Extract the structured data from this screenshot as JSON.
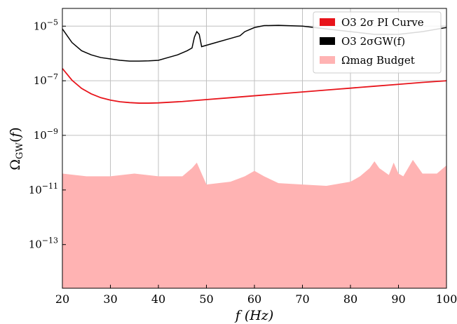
{
  "chart_data": {
    "type": "line",
    "xlabel": "f (Hz)",
    "ylabel": "Ω_GW(f)",
    "xlim": [
      20,
      100
    ],
    "ylim_log10": [
      -14.6,
      -4.35
    ],
    "y_scale": "log",
    "grid": true,
    "legend_position": "top-right",
    "x_ticks": [
      20,
      30,
      40,
      50,
      60,
      70,
      80,
      90,
      100
    ],
    "x_tick_labels": [
      "20",
      "30",
      "40",
      "50",
      "60",
      "70",
      "80",
      "90",
      "100"
    ],
    "y_ticks_log10": [
      -13,
      -11,
      -9,
      -7,
      -5
    ],
    "y_tick_labels": [
      "10−13",
      "10−11",
      "10−9",
      "10−7",
      "10−5"
    ],
    "legend": {
      "pi_curve": "O3 2σ PI Curve",
      "sigma": "O3 2σGW(f)",
      "budget": "Ωmag Budget"
    },
    "colors": {
      "pi_curve": "#e8141b",
      "sigma": "#000000",
      "budget": "#ffb3b3",
      "grid": "#c0c0c0"
    },
    "series": [
      {
        "name": "O3 2σ PI Curve",
        "x": [
          20,
          22,
          24,
          26,
          28,
          30,
          32,
          34,
          36,
          38,
          40,
          45,
          50,
          55,
          60,
          65,
          70,
          75,
          80,
          85,
          90,
          95,
          100
        ],
        "log10_y": [
          -6.55,
          -6.98,
          -7.28,
          -7.48,
          -7.62,
          -7.71,
          -7.77,
          -7.8,
          -7.82,
          -7.82,
          -7.81,
          -7.76,
          -7.69,
          -7.62,
          -7.55,
          -7.48,
          -7.41,
          -7.34,
          -7.27,
          -7.2,
          -7.13,
          -7.06,
          -7.0
        ]
      },
      {
        "name": "O3 2σGW(f)",
        "x": [
          20,
          22,
          24,
          26,
          28,
          30,
          32,
          34,
          36,
          38,
          40,
          42,
          44,
          46,
          47,
          47.5,
          48,
          48.5,
          49,
          52,
          55,
          57,
          58,
          60,
          62,
          65,
          70,
          75,
          80,
          85,
          90,
          95,
          100
        ],
        "log10_y": [
          -5.1,
          -5.6,
          -5.9,
          -6.05,
          -6.15,
          -6.2,
          -6.25,
          -6.28,
          -6.28,
          -6.27,
          -6.25,
          -6.15,
          -6.05,
          -5.9,
          -5.8,
          -5.4,
          -5.2,
          -5.3,
          -5.75,
          -5.6,
          -5.45,
          -5.35,
          -5.2,
          -5.05,
          -4.98,
          -4.97,
          -5.0,
          -5.1,
          -5.2,
          -5.3,
          -5.3,
          -5.2,
          -5.05
        ]
      },
      {
        "name": "Ωmag Budget",
        "x": [
          20,
          25,
          30,
          35,
          40,
          45,
          47,
          48,
          49,
          50,
          55,
          58,
          60,
          62,
          65,
          70,
          75,
          80,
          82,
          84,
          85,
          86,
          88,
          89,
          90,
          91,
          92,
          93,
          95,
          98,
          100
        ],
        "log10_y": [
          -10.4,
          -10.5,
          -10.5,
          -10.4,
          -10.5,
          -10.5,
          -10.2,
          -10.0,
          -10.4,
          -10.8,
          -10.7,
          -10.5,
          -10.3,
          -10.5,
          -10.75,
          -10.8,
          -10.85,
          -10.7,
          -10.5,
          -10.2,
          -9.95,
          -10.2,
          -10.45,
          -10.0,
          -10.4,
          -10.5,
          -10.2,
          -9.9,
          -10.4,
          -10.4,
          -10.1
        ]
      }
    ]
  }
}
